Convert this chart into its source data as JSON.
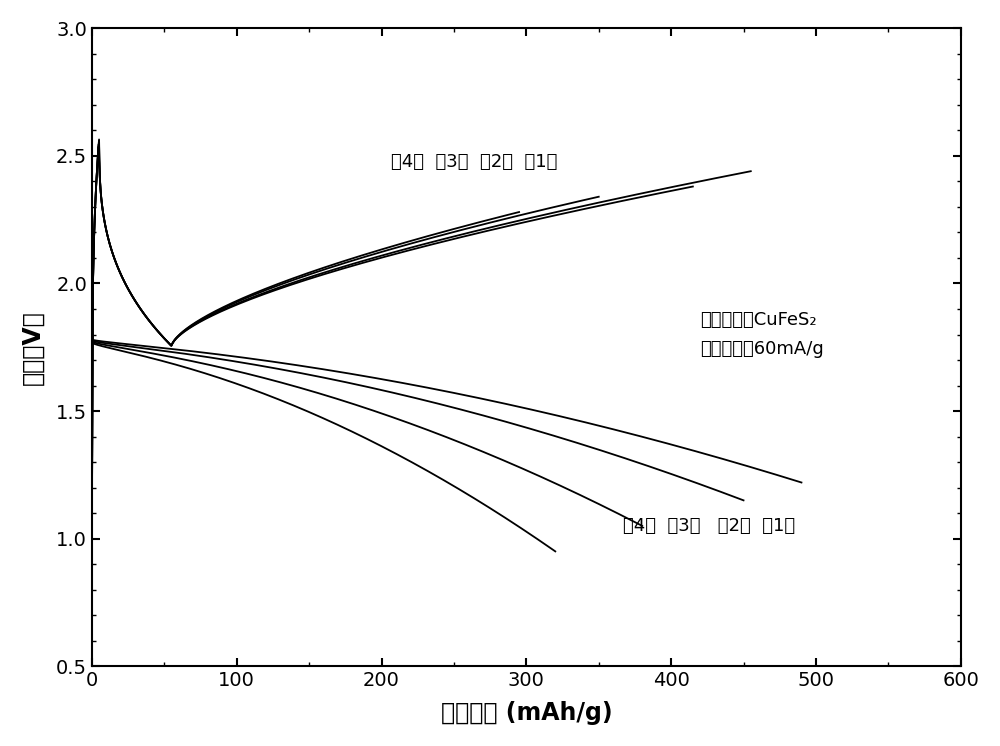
{
  "xlabel": "放电容量 (mAh/g)",
  "ylabel": "电压（V）",
  "xlim": [
    0,
    600
  ],
  "ylim": [
    0.5,
    3.0
  ],
  "xticks": [
    0,
    100,
    200,
    300,
    400,
    500,
    600
  ],
  "yticks": [
    0.5,
    1.0,
    1.5,
    2.0,
    2.5,
    3.0
  ],
  "annotation_top": "笥4次  笥3次  笥2次  笥1次",
  "annotation_bottom": "笥4次  笥3次   笥2次  笥1次",
  "annotation_material": "活性物质：CuFeS₂",
  "annotation_current": "电流密度：60mA/g",
  "line_color": "#000000",
  "bg_color": "#ffffff",
  "cycles": [
    {
      "charge_cap": 295,
      "discharge_cap": 320,
      "charge_v_end": 2.28,
      "discharge_v_end": 0.95
    },
    {
      "charge_cap": 350,
      "discharge_cap": 380,
      "charge_v_end": 2.34,
      "discharge_v_end": 1.05
    },
    {
      "charge_cap": 415,
      "discharge_cap": 450,
      "charge_v_end": 2.38,
      "discharge_v_end": 1.15
    },
    {
      "charge_cap": 455,
      "discharge_cap": 490,
      "charge_v_end": 2.44,
      "discharge_v_end": 1.22
    }
  ]
}
